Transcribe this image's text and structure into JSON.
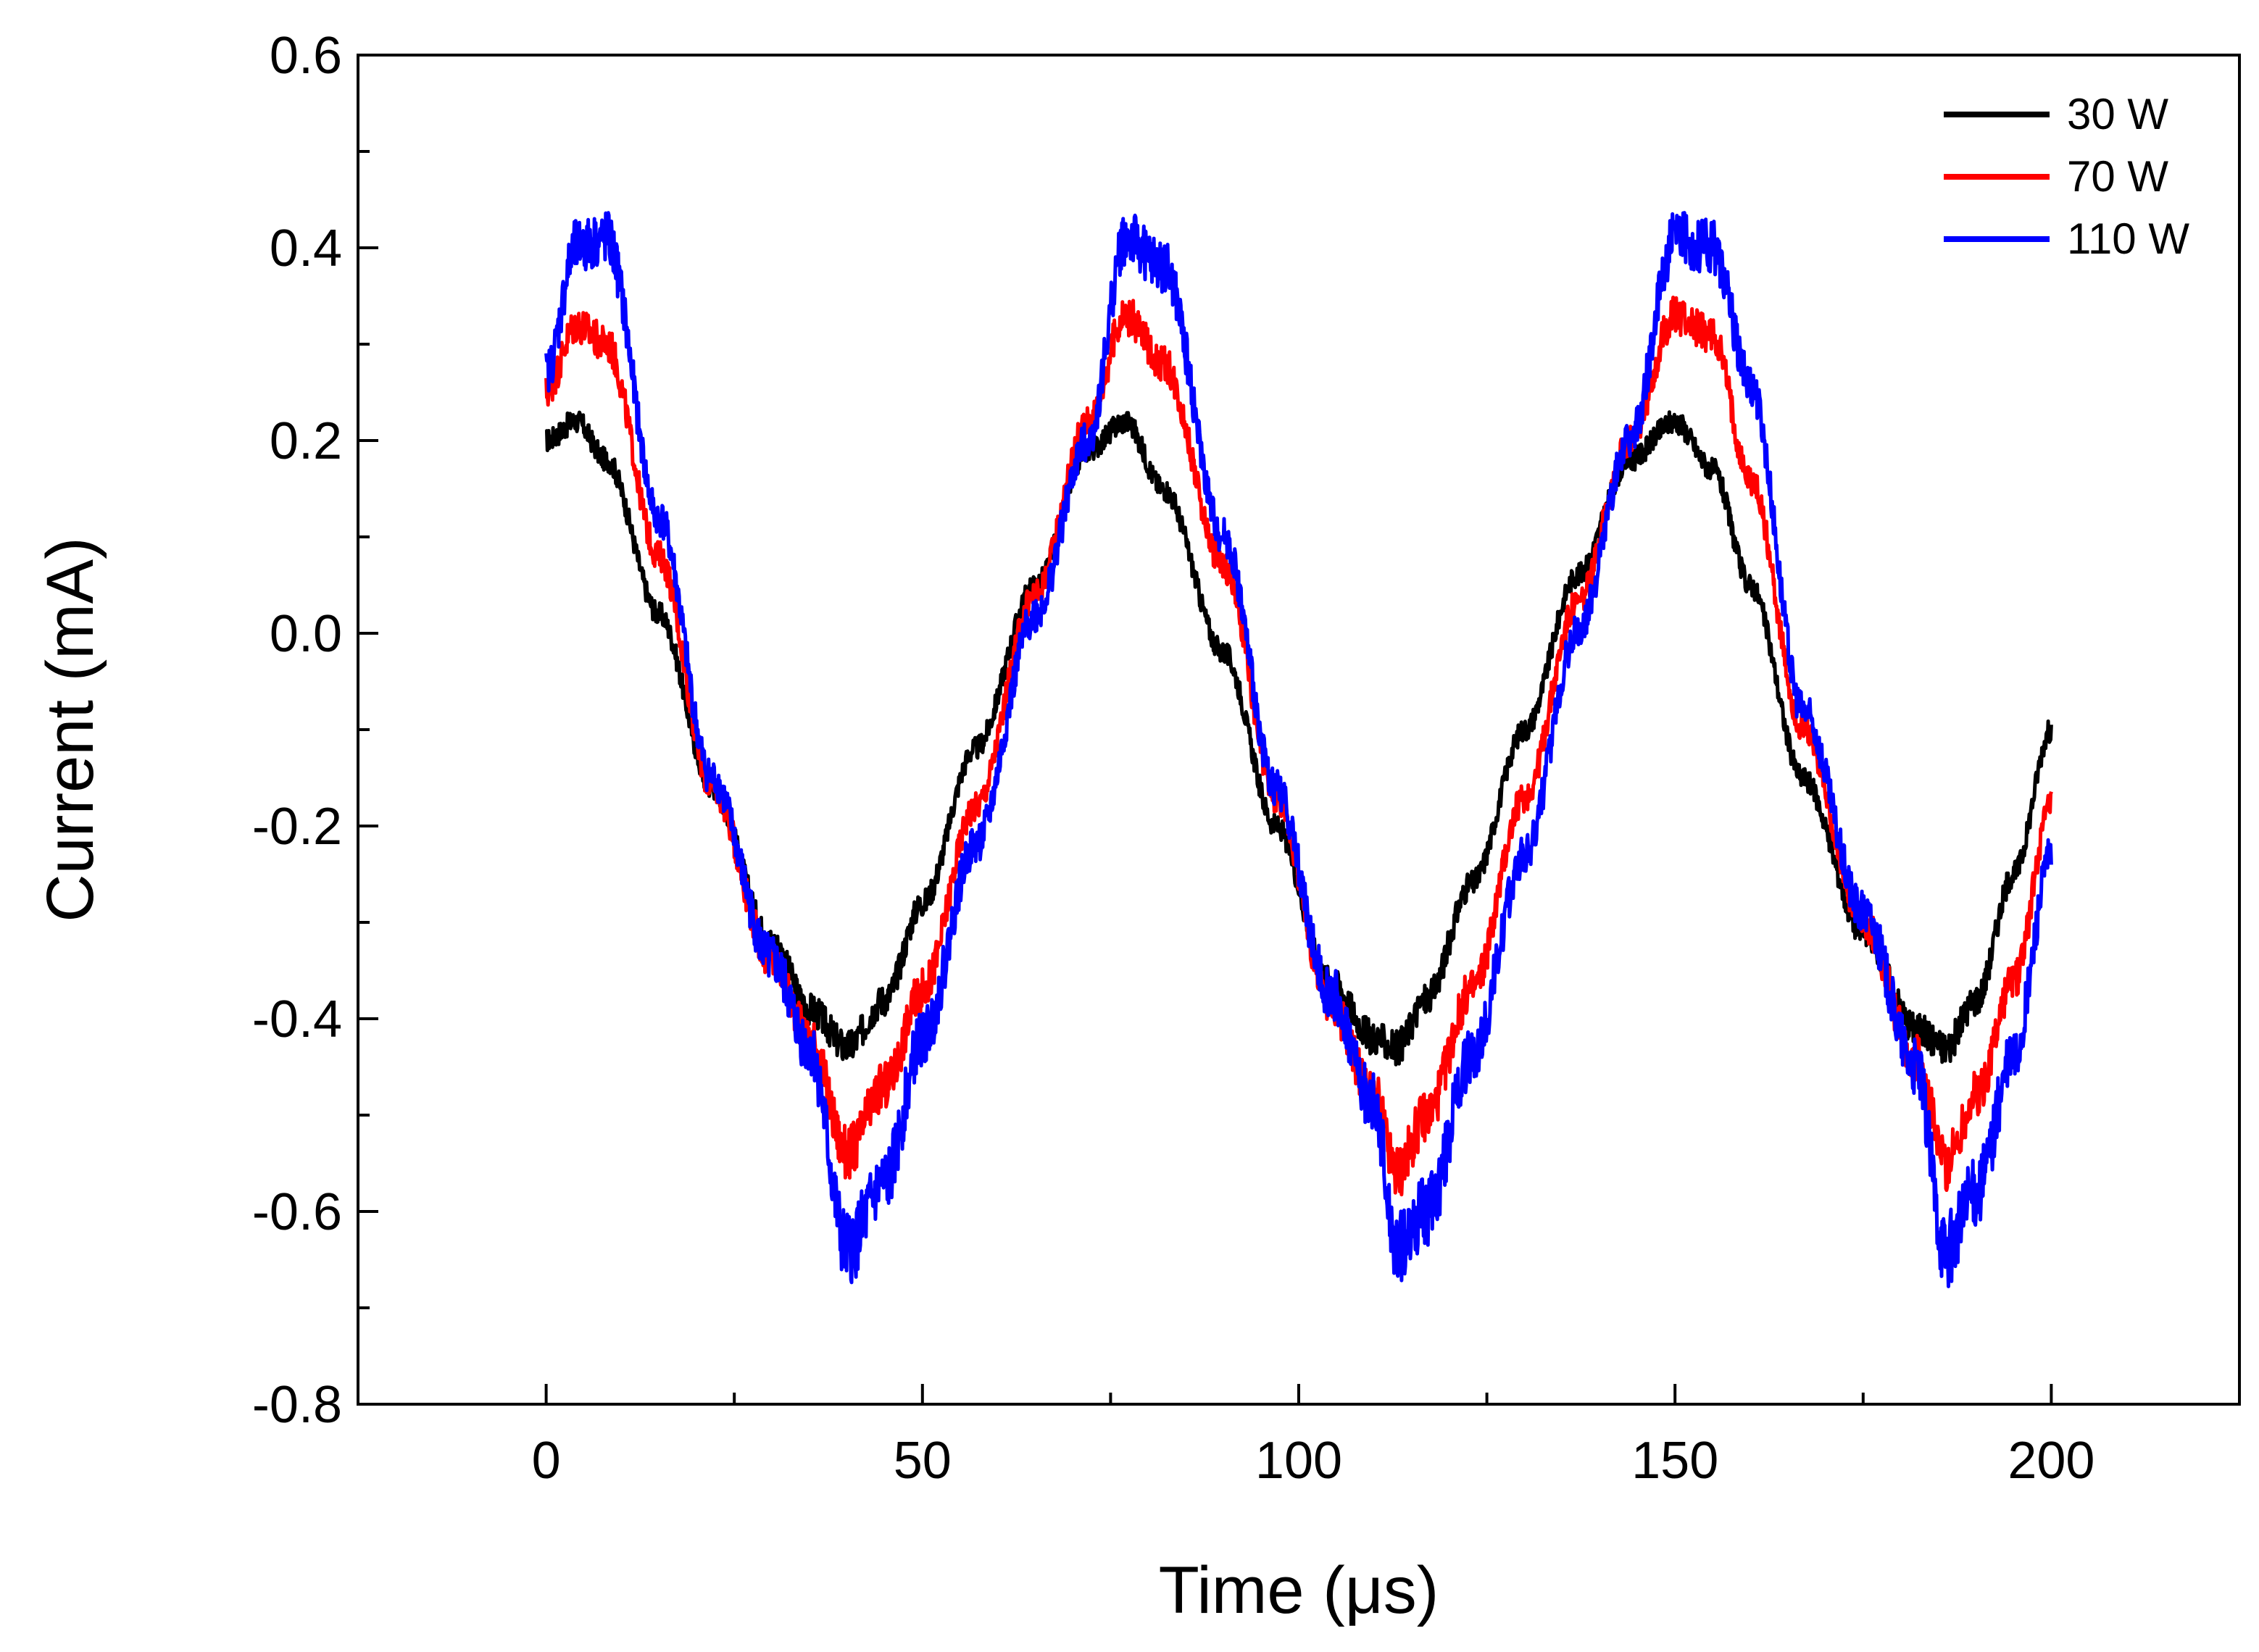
{
  "chart_data": {
    "type": "line",
    "title": "",
    "xlabel": "Time (μs)",
    "ylabel": "Current (mA)",
    "xlim": [
      -25,
      225
    ],
    "ylim": [
      -0.8,
      0.6
    ],
    "xticks": [
      0,
      50,
      100,
      150,
      200
    ],
    "xtick_labels": [
      "0",
      "50",
      "100",
      "150",
      "200"
    ],
    "yticks": [
      -0.8,
      -0.6,
      -0.4,
      -0.2,
      0.0,
      0.2,
      0.4,
      0.6
    ],
    "ytick_labels": [
      "-0.8",
      "-0.6",
      "-0.4",
      "-0.2",
      "0.0",
      "0.2",
      "0.4",
      "0.6"
    ],
    "grid": false,
    "legend_position": "top-right",
    "x": [
      0,
      4,
      8,
      15,
      22,
      30,
      35,
      40,
      45,
      50,
      57,
      65,
      72,
      77,
      82,
      90,
      97,
      104,
      110,
      113,
      117,
      123,
      130,
      137,
      144,
      150,
      155,
      160,
      167,
      175,
      182,
      186,
      190,
      195,
      200
    ],
    "series": [
      {
        "name": "30 W",
        "color": "#000000",
        "values": [
          0.2,
          0.22,
          0.18,
          0.02,
          -0.16,
          -0.32,
          -0.39,
          -0.43,
          -0.38,
          -0.28,
          -0.12,
          0.05,
          0.19,
          0.22,
          0.15,
          -0.02,
          -0.2,
          -0.36,
          -0.42,
          -0.43,
          -0.38,
          -0.26,
          -0.1,
          0.06,
          0.18,
          0.22,
          0.17,
          0.05,
          -0.15,
          -0.31,
          -0.41,
          -0.43,
          -0.38,
          -0.25,
          -0.1
        ]
      },
      {
        "name": "70 W",
        "color": "#ff0000",
        "values": [
          0.25,
          0.32,
          0.3,
          0.08,
          -0.16,
          -0.34,
          -0.42,
          -0.54,
          -0.47,
          -0.37,
          -0.18,
          0.04,
          0.22,
          0.33,
          0.28,
          0.07,
          -0.17,
          -0.38,
          -0.48,
          -0.56,
          -0.5,
          -0.37,
          -0.17,
          0.03,
          0.2,
          0.33,
          0.31,
          0.16,
          -0.1,
          -0.3,
          -0.44,
          -0.55,
          -0.48,
          -0.36,
          -0.18
        ]
      },
      {
        "name": "110 W",
        "color": "#0000ff",
        "values": [
          0.27,
          0.4,
          0.41,
          0.12,
          -0.15,
          -0.34,
          -0.43,
          -0.64,
          -0.57,
          -0.42,
          -0.22,
          0.02,
          0.2,
          0.41,
          0.38,
          0.1,
          -0.16,
          -0.37,
          -0.49,
          -0.64,
          -0.6,
          -0.44,
          -0.23,
          0.0,
          0.2,
          0.41,
          0.4,
          0.26,
          -0.08,
          -0.29,
          -0.45,
          -0.64,
          -0.58,
          -0.44,
          -0.23
        ]
      }
    ]
  }
}
